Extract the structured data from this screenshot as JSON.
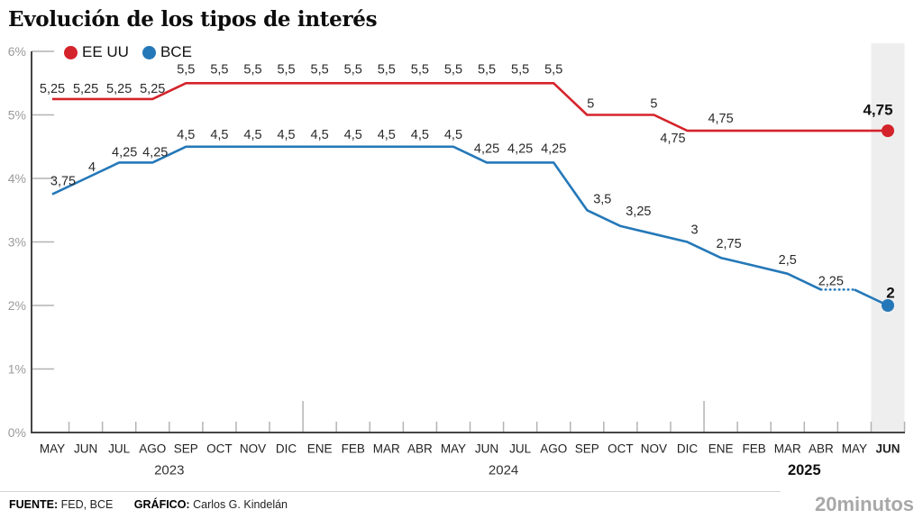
{
  "title": "Evolución de los tipos de interés",
  "legend": [
    {
      "label": "EE UU",
      "color": "#d5232b"
    },
    {
      "label": "BCE",
      "color": "#2478b8"
    }
  ],
  "footer": {
    "source_label": "FUENTE:",
    "source_text": "FED, BCE",
    "credit_label": "GRÁFICO:",
    "credit_text": "Carlos G. Kindelán",
    "brand": "20minutos"
  },
  "chart_data": {
    "type": "line",
    "title": "Evolución de los tipos de interés",
    "xlabel": "",
    "ylabel": "",
    "ylim": [
      0,
      6
    ],
    "grid": false,
    "legend_position": "top-left",
    "highlight_last_column": true,
    "highlight_color": "#eeeeee",
    "y_tick_labels": [
      "6%",
      "5%",
      "4%",
      "3%",
      "2%",
      "1%",
      "0%"
    ],
    "x_categories": [
      "MAY",
      "JUN",
      "JUL",
      "AGO",
      "SEP",
      "OCT",
      "NOV",
      "DIC",
      "ENE",
      "FEB",
      "MAR",
      "ABR",
      "MAY",
      "JUN",
      "JUL",
      "AGO",
      "SEP",
      "OCT",
      "NOV",
      "DIC",
      "ENE",
      "FEB",
      "MAR",
      "ABR",
      "MAY",
      "JUN"
    ],
    "x_bold_index": 25,
    "years": [
      {
        "label": "2023",
        "from": 0,
        "to": 7,
        "bold": false
      },
      {
        "label": "2024",
        "from": 8,
        "to": 19,
        "bold": false
      },
      {
        "label": "2025",
        "from": 20,
        "to": 25,
        "bold": true
      }
    ],
    "series": [
      {
        "name": "EE UU",
        "color": "#d5232b",
        "values": [
          5.25,
          5.25,
          5.25,
          5.25,
          5.5,
          5.5,
          5.5,
          5.5,
          5.5,
          5.5,
          5.5,
          5.5,
          5.5,
          5.5,
          5.5,
          5.5,
          5.0,
          5.0,
          5.0,
          4.75,
          4.75,
          4.75,
          4.75,
          4.75,
          4.75,
          4.75
        ],
        "labels": [
          {
            "i": 0,
            "t": "5,25",
            "dy": -11
          },
          {
            "i": 1,
            "t": "5,25",
            "dy": -11
          },
          {
            "i": 2,
            "t": "5,25",
            "dy": -11
          },
          {
            "i": 3,
            "t": "5,25",
            "dy": -11
          },
          {
            "i": 4,
            "t": "5,5",
            "dy": -15
          },
          {
            "i": 5,
            "t": "5,5",
            "dy": -15
          },
          {
            "i": 6,
            "t": "5,5",
            "dy": -15
          },
          {
            "i": 7,
            "t": "5,5",
            "dy": -15
          },
          {
            "i": 8,
            "t": "5,5",
            "dy": -15
          },
          {
            "i": 9,
            "t": "5,5",
            "dy": -15
          },
          {
            "i": 10,
            "t": "5,5",
            "dy": -15
          },
          {
            "i": 11,
            "t": "5,5",
            "dy": -15
          },
          {
            "i": 12,
            "t": "5,5",
            "dy": -15
          },
          {
            "i": 13,
            "t": "5,5",
            "dy": -15
          },
          {
            "i": 14,
            "t": "5,5",
            "dy": -15
          },
          {
            "i": 15,
            "t": "5,5",
            "dy": -15
          },
          {
            "i": 16,
            "t": "5",
            "dx": 4,
            "dy": -12
          },
          {
            "i": 18,
            "t": "5",
            "dy": -12
          },
          {
            "i": 19,
            "t": "4,75",
            "dx": -16,
            "dy": 9
          },
          {
            "i": 20,
            "t": "4,75",
            "dy": -13
          },
          {
            "i": 25,
            "t": "4,75",
            "b": true,
            "dx": -11,
            "dy": -23
          }
        ]
      },
      {
        "name": "BCE",
        "color": "#2478b8",
        "values": [
          3.75,
          4.0,
          4.25,
          4.25,
          4.5,
          4.5,
          4.5,
          4.5,
          4.5,
          4.5,
          4.5,
          4.5,
          4.5,
          4.25,
          4.25,
          4.25,
          3.5,
          3.25,
          3.125,
          3.0,
          2.75,
          2.625,
          2.5,
          2.25,
          2.25,
          2.0
        ],
        "dotted_from": 23,
        "dotted_to": 24,
        "labels": [
          {
            "i": 0,
            "t": "3,75",
            "dx": 12,
            "dy": -14
          },
          {
            "i": 1,
            "t": "4",
            "dx": 7,
            "dy": -12
          },
          {
            "i": 2,
            "t": "4,25",
            "dx": 6,
            "dy": -11
          },
          {
            "i": 3,
            "t": "4,25",
            "dx": 3,
            "dy": -11
          },
          {
            "i": 4,
            "t": "4,5",
            "dy": -13
          },
          {
            "i": 5,
            "t": "4,5",
            "dy": -13
          },
          {
            "i": 6,
            "t": "4,5",
            "dy": -13
          },
          {
            "i": 7,
            "t": "4,5",
            "dy": -13
          },
          {
            "i": 8,
            "t": "4,5",
            "dy": -13
          },
          {
            "i": 9,
            "t": "4,5",
            "dy": -13
          },
          {
            "i": 10,
            "t": "4,5",
            "dy": -13
          },
          {
            "i": 11,
            "t": "4,5",
            "dy": -13
          },
          {
            "i": 12,
            "t": "4,5",
            "dy": -13
          },
          {
            "i": 13,
            "t": "4,25",
            "dy": -15
          },
          {
            "i": 14,
            "t": "4,25",
            "dy": -15
          },
          {
            "i": 15,
            "t": "4,25",
            "dy": -15
          },
          {
            "i": 16,
            "t": "3,5",
            "dx": 17,
            "dy": -12
          },
          {
            "i": 17,
            "t": "3,25",
            "dx": 20,
            "dy": -16
          },
          {
            "i": 19,
            "t": "3",
            "dx": 8,
            "dy": -13
          },
          {
            "i": 20,
            "t": "2,75",
            "dx": 9,
            "dy": -15
          },
          {
            "i": 22,
            "t": "2,5",
            "dy": -15
          },
          {
            "i": 23,
            "t": "2,25",
            "dx": 11,
            "dy": -9
          },
          {
            "i": 25,
            "t": "2",
            "b": true,
            "dx": 3,
            "dy": -14
          }
        ]
      }
    ]
  }
}
